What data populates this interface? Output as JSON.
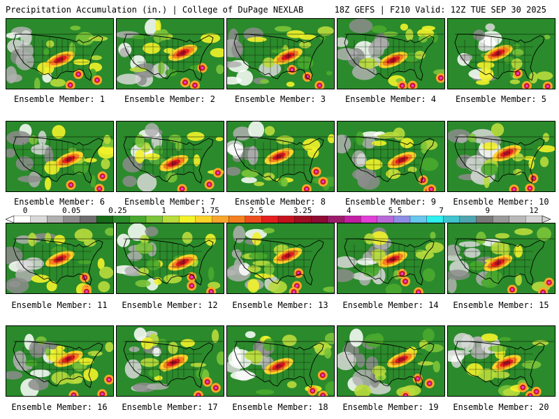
{
  "header": {
    "title_left": "Precipitation Accumulation (in.) | College of DuPage NEXLAB",
    "title_right": "18Z GEFS | F210 Valid: 12Z TUE SEP 30 2025"
  },
  "colorbar": {
    "labels": [
      "0",
      "0.05",
      "0.25",
      "1",
      "1.75",
      "2.5",
      "3.25",
      "4",
      "5.5",
      "7",
      "9",
      "12"
    ],
    "colors": [
      "#ffffff",
      "#d9d9d9",
      "#b0b0b0",
      "#8c8c8c",
      "#6e6e6e",
      "#176b17",
      "#2b8a2b",
      "#49a82e",
      "#7cc43a",
      "#b9dc3c",
      "#f2f22a",
      "#fbd32a",
      "#f8a72c",
      "#f4801f",
      "#ee4e1e",
      "#e3201e",
      "#c5121e",
      "#a00f23",
      "#8d0b34",
      "#9a1d6a",
      "#c21fa3",
      "#e13fd6",
      "#b86ad8",
      "#8f8ee6",
      "#69c7ee",
      "#2ef0f0",
      "#3fc4d0",
      "#4fa6b0",
      "#7a7a7a",
      "#9a9a9a",
      "#b9b9b9",
      "#d3d3d3"
    ]
  },
  "members": [
    {
      "label": "Ensemble Member: 1"
    },
    {
      "label": "Ensemble Member: 2"
    },
    {
      "label": "Ensemble Member: 3"
    },
    {
      "label": "Ensemble Member: 4"
    },
    {
      "label": "Ensemble Member: 5"
    },
    {
      "label": "Ensemble Member: 6"
    },
    {
      "label": "Ensemble Member: 7"
    },
    {
      "label": "Ensemble Member: 8"
    },
    {
      "label": "Ensemble Member: 9"
    },
    {
      "label": "Ensemble Member: 10"
    },
    {
      "label": "Ensemble Member: 11"
    },
    {
      "label": "Ensemble Member: 12"
    },
    {
      "label": "Ensemble Member: 13"
    },
    {
      "label": "Ensemble Member: 14"
    },
    {
      "label": "Ensemble Member: 15"
    },
    {
      "label": "Ensemble Member: 16"
    },
    {
      "label": "Ensemble Member: 17"
    },
    {
      "label": "Ensemble Member: 18"
    },
    {
      "label": "Ensemble Member: 19"
    },
    {
      "label": "Ensemble Member: 20"
    }
  ]
}
